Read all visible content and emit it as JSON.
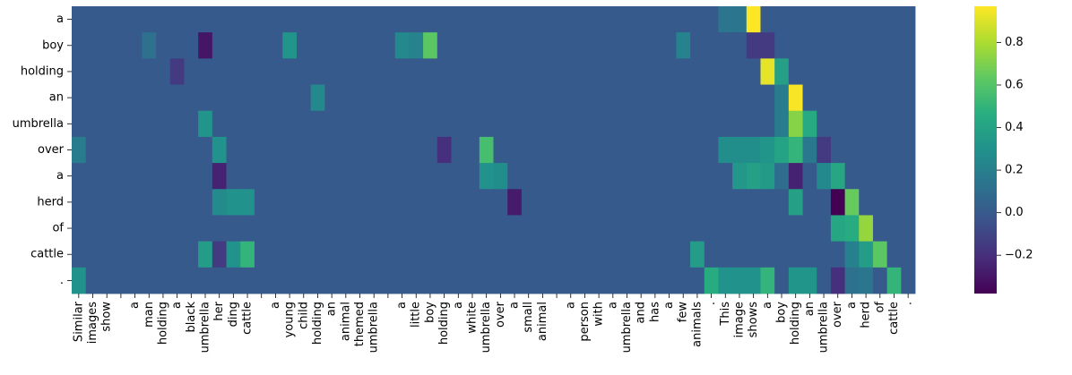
{
  "chart_data": {
    "type": "heatmap",
    "title": "",
    "xlabel": "",
    "ylabel": "",
    "y_tokens": [
      "a",
      "boy",
      "holding",
      "an",
      "umbrella",
      "over",
      "a",
      "herd",
      "of",
      "cattle",
      "."
    ],
    "x_tokens": [
      "Similar",
      "images",
      "show",
      "",
      "a",
      "man",
      "holding",
      "a",
      "black",
      "umbrella",
      "her",
      "ding",
      "cattle",
      "",
      "a",
      "young",
      "child",
      "holding",
      "an",
      "animal",
      "themed",
      "umbrella",
      "",
      "a",
      "little",
      "boy",
      "holding",
      "a",
      "white",
      "umbrella",
      "over",
      "a",
      "small",
      "animal",
      "",
      "a",
      "person",
      "with",
      "a",
      "umbrella",
      "and",
      "has",
      "a",
      "few",
      "animals",
      ".",
      "This",
      "image",
      "shows",
      "a",
      "boy",
      "holding",
      "an",
      "umbrella",
      "over",
      "a",
      "herd",
      "of",
      "cattle",
      "."
    ],
    "colorbar": {
      "min": -0.38,
      "max": 0.97,
      "ticks": [
        -0.2,
        0.0,
        0.2,
        0.4,
        0.6,
        0.8
      ],
      "tick_labels": [
        "−0.2",
        "0.0",
        "0.2",
        "0.4",
        "0.6",
        "0.8"
      ],
      "colormap": "viridis"
    },
    "base_value": 0.0,
    "highlights": [
      {
        "row": 0,
        "col": 46,
        "value": 0.14
      },
      {
        "row": 0,
        "col": 47,
        "value": 0.14
      },
      {
        "row": 0,
        "col": 48,
        "value": 0.97
      },
      {
        "row": 1,
        "col": 5,
        "value": 0.12
      },
      {
        "row": 1,
        "col": 9,
        "value": -0.3
      },
      {
        "row": 1,
        "col": 15,
        "value": 0.32
      },
      {
        "row": 1,
        "col": 23,
        "value": 0.25
      },
      {
        "row": 1,
        "col": 24,
        "value": 0.22
      },
      {
        "row": 1,
        "col": 25,
        "value": 0.62
      },
      {
        "row": 1,
        "col": 43,
        "value": 0.22
      },
      {
        "row": 1,
        "col": 48,
        "value": -0.15
      },
      {
        "row": 1,
        "col": 49,
        "value": -0.15
      },
      {
        "row": 2,
        "col": 7,
        "value": -0.15
      },
      {
        "row": 2,
        "col": 49,
        "value": 0.92
      },
      {
        "row": 2,
        "col": 50,
        "value": 0.38
      },
      {
        "row": 3,
        "col": 17,
        "value": 0.25
      },
      {
        "row": 3,
        "col": 50,
        "value": 0.18
      },
      {
        "row": 3,
        "col": 51,
        "value": 0.96
      },
      {
        "row": 4,
        "col": 9,
        "value": 0.32
      },
      {
        "row": 4,
        "col": 50,
        "value": 0.18
      },
      {
        "row": 4,
        "col": 51,
        "value": 0.72
      },
      {
        "row": 4,
        "col": 52,
        "value": 0.44
      },
      {
        "row": 5,
        "col": 0,
        "value": 0.18
      },
      {
        "row": 5,
        "col": 10,
        "value": 0.3
      },
      {
        "row": 5,
        "col": 26,
        "value": -0.2
      },
      {
        "row": 5,
        "col": 29,
        "value": 0.56
      },
      {
        "row": 5,
        "col": 46,
        "value": 0.28
      },
      {
        "row": 5,
        "col": 47,
        "value": 0.28
      },
      {
        "row": 5,
        "col": 48,
        "value": 0.28
      },
      {
        "row": 5,
        "col": 49,
        "value": 0.32
      },
      {
        "row": 5,
        "col": 50,
        "value": 0.4
      },
      {
        "row": 5,
        "col": 51,
        "value": 0.5
      },
      {
        "row": 5,
        "col": 52,
        "value": 0.16
      },
      {
        "row": 5,
        "col": 53,
        "value": -0.15
      },
      {
        "row": 6,
        "col": 10,
        "value": -0.25
      },
      {
        "row": 6,
        "col": 29,
        "value": 0.3
      },
      {
        "row": 6,
        "col": 30,
        "value": 0.28
      },
      {
        "row": 6,
        "col": 47,
        "value": 0.33
      },
      {
        "row": 6,
        "col": 48,
        "value": 0.38
      },
      {
        "row": 6,
        "col": 49,
        "value": 0.35
      },
      {
        "row": 6,
        "col": 50,
        "value": 0.1
      },
      {
        "row": 6,
        "col": 51,
        "value": -0.25
      },
      {
        "row": 6,
        "col": 53,
        "value": 0.25
      },
      {
        "row": 6,
        "col": 54,
        "value": 0.42
      },
      {
        "row": 7,
        "col": 10,
        "value": 0.26
      },
      {
        "row": 7,
        "col": 11,
        "value": 0.3
      },
      {
        "row": 7,
        "col": 12,
        "value": 0.3
      },
      {
        "row": 7,
        "col": 31,
        "value": -0.28
      },
      {
        "row": 7,
        "col": 51,
        "value": 0.38
      },
      {
        "row": 7,
        "col": 54,
        "value": -0.38
      },
      {
        "row": 7,
        "col": 55,
        "value": 0.65
      },
      {
        "row": 8,
        "col": 54,
        "value": 0.42
      },
      {
        "row": 8,
        "col": 55,
        "value": 0.45
      },
      {
        "row": 8,
        "col": 56,
        "value": 0.75
      },
      {
        "row": 9,
        "col": 9,
        "value": 0.36
      },
      {
        "row": 9,
        "col": 10,
        "value": -0.15
      },
      {
        "row": 9,
        "col": 11,
        "value": 0.3
      },
      {
        "row": 9,
        "col": 12,
        "value": 0.5
      },
      {
        "row": 9,
        "col": 44,
        "value": 0.36
      },
      {
        "row": 9,
        "col": 55,
        "value": 0.2
      },
      {
        "row": 9,
        "col": 56,
        "value": 0.36
      },
      {
        "row": 9,
        "col": 57,
        "value": 0.62
      },
      {
        "row": 10,
        "col": 0,
        "value": 0.3
      },
      {
        "row": 10,
        "col": 45,
        "value": 0.45
      },
      {
        "row": 10,
        "col": 46,
        "value": 0.3
      },
      {
        "row": 10,
        "col": 47,
        "value": 0.3
      },
      {
        "row": 10,
        "col": 48,
        "value": 0.3
      },
      {
        "row": 10,
        "col": 49,
        "value": 0.5
      },
      {
        "row": 10,
        "col": 51,
        "value": 0.32
      },
      {
        "row": 10,
        "col": 52,
        "value": 0.32
      },
      {
        "row": 10,
        "col": 54,
        "value": -0.2
      },
      {
        "row": 10,
        "col": 55,
        "value": 0.12
      },
      {
        "row": 10,
        "col": 56,
        "value": 0.15
      },
      {
        "row": 10,
        "col": 58,
        "value": 0.5
      }
    ]
  }
}
